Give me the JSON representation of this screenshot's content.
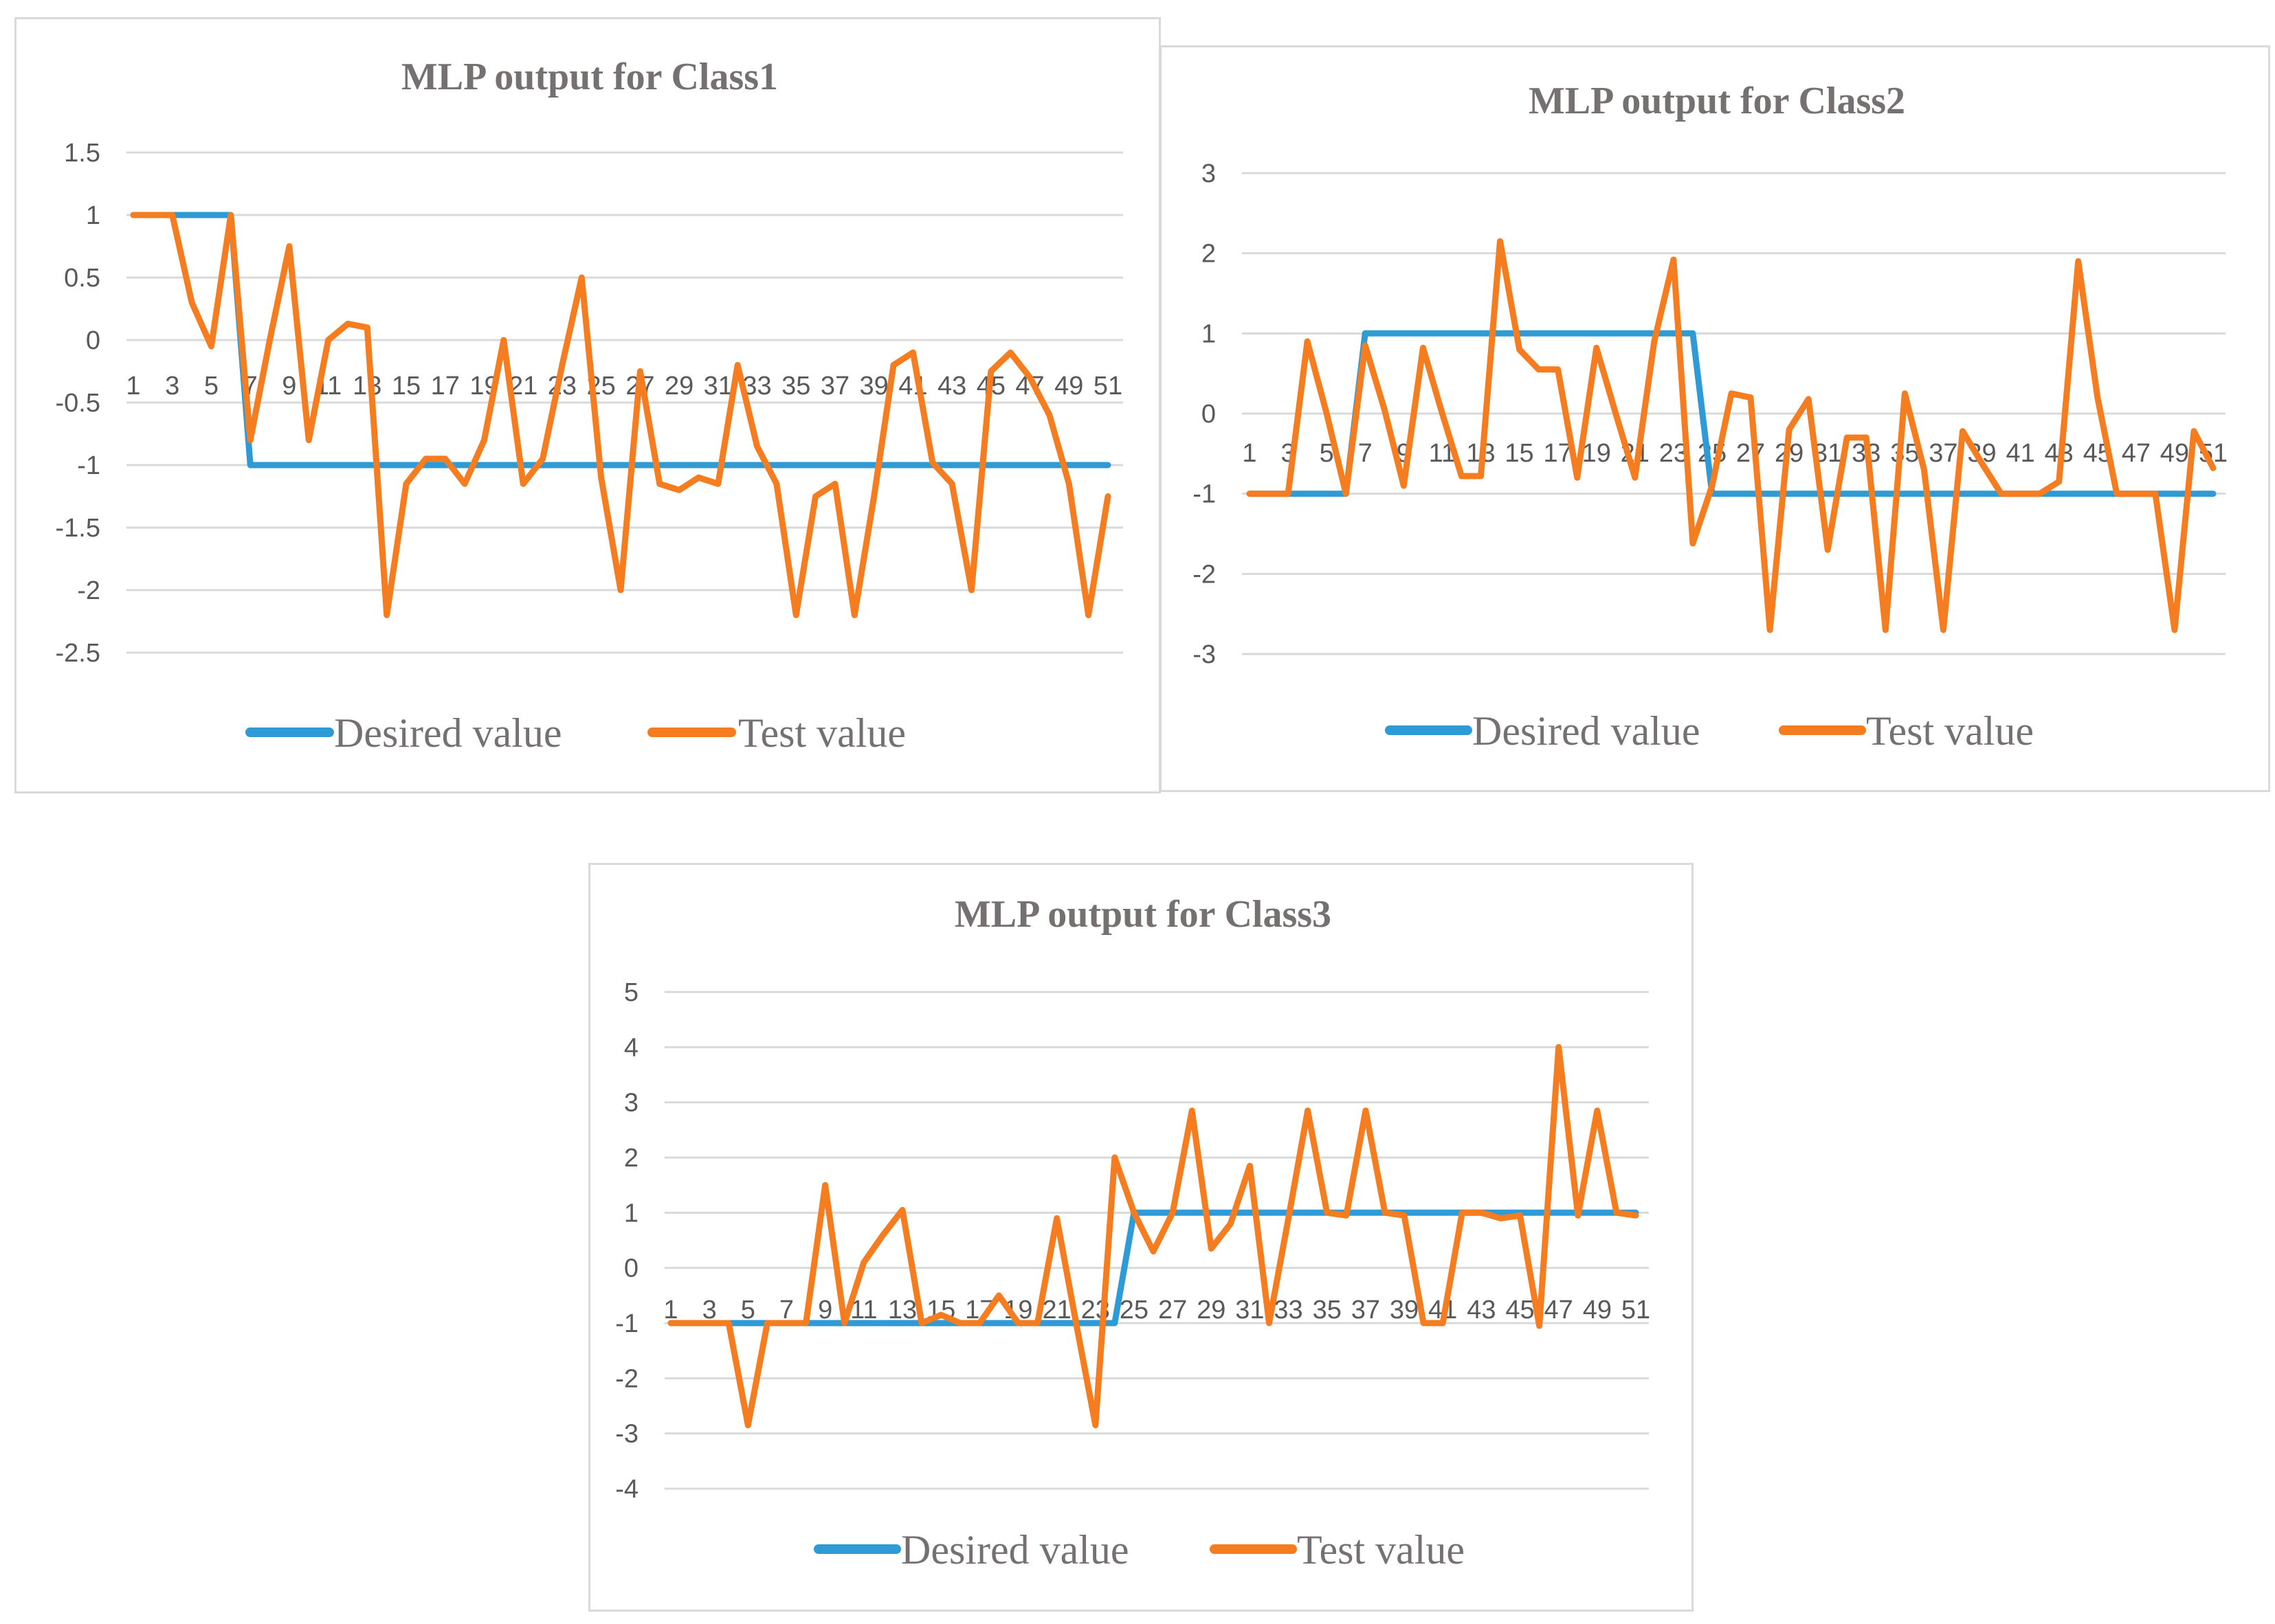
{
  "chart_data": [
    {
      "type": "line",
      "title": "MLP output for Class1",
      "xlabel": "",
      "ylabel": "",
      "x": [
        1,
        2,
        3,
        4,
        5,
        6,
        7,
        8,
        9,
        10,
        11,
        12,
        13,
        14,
        15,
        16,
        17,
        18,
        19,
        20,
        21,
        22,
        23,
        24,
        25,
        26,
        27,
        28,
        29,
        30,
        31,
        32,
        33,
        34,
        35,
        36,
        37,
        38,
        39,
        40,
        41,
        42,
        43,
        44,
        45,
        46,
        47,
        48,
        49,
        50,
        51
      ],
      "x_tick_labels": [
        "1",
        "3",
        "5",
        "7",
        "9",
        "11",
        "13",
        "15",
        "17",
        "19",
        "21",
        "23",
        "25",
        "27",
        "29",
        "31",
        "33",
        "35",
        "37",
        "39",
        "41",
        "43",
        "45",
        "47",
        "49",
        "51"
      ],
      "ylim": [
        -2.5,
        1.5
      ],
      "y_ticks": [
        1.5,
        1,
        0.5,
        0,
        -0.5,
        -1,
        -1.5,
        -2,
        -2.5
      ],
      "y_tick_labels": [
        "1.5",
        "1",
        "0.5",
        "0",
        "-0.5",
        "-1",
        "-1.5",
        "-2",
        "-2.5"
      ],
      "legend": "bottom",
      "series": [
        {
          "name": "Desired value",
          "color": "#2e9bd6",
          "values": [
            1,
            1,
            1,
            1,
            1,
            1,
            -1,
            -1,
            -1,
            -1,
            -1,
            -1,
            -1,
            -1,
            -1,
            -1,
            -1,
            -1,
            -1,
            -1,
            -1,
            -1,
            -1,
            -1,
            -1,
            -1,
            -1,
            -1,
            -1,
            -1,
            -1,
            -1,
            -1,
            -1,
            -1,
            -1,
            -1,
            -1,
            -1,
            -1,
            -1,
            -1,
            -1,
            -1,
            -1,
            -1,
            -1,
            -1,
            -1,
            -1,
            -1
          ]
        },
        {
          "name": "Test value",
          "color": "#f57c1f",
          "values": [
            1,
            1,
            1,
            0.3,
            -0.05,
            1,
            -0.8,
            0,
            0.75,
            -0.8,
            0,
            0.13,
            0.1,
            -2.2,
            -1.15,
            -0.95,
            -0.95,
            -1.15,
            -0.8,
            0,
            -1.15,
            -0.95,
            -0.2,
            0.5,
            -1.1,
            -2,
            -0.25,
            -1.15,
            -1.2,
            -1.1,
            -1.15,
            -0.2,
            -0.85,
            -1.15,
            -2.2,
            -1.25,
            -1.15,
            -2.2,
            -1.25,
            -0.2,
            -0.1,
            -0.98,
            -1.15,
            -2,
            -0.25,
            -0.1,
            -0.3,
            -0.6,
            -1.15,
            -2.2,
            -1.25
          ]
        }
      ]
    },
    {
      "type": "line",
      "title": "MLP output for Class2",
      "xlabel": "",
      "ylabel": "",
      "x": [
        1,
        2,
        3,
        4,
        5,
        6,
        7,
        8,
        9,
        10,
        11,
        12,
        13,
        14,
        15,
        16,
        17,
        18,
        19,
        20,
        21,
        22,
        23,
        24,
        25,
        26,
        27,
        28,
        29,
        30,
        31,
        32,
        33,
        34,
        35,
        36,
        37,
        38,
        39,
        40,
        41,
        42,
        43,
        44,
        45,
        46,
        47,
        48,
        49,
        50,
        51
      ],
      "x_tick_labels": [
        "1",
        "3",
        "5",
        "7",
        "9",
        "11",
        "13",
        "15",
        "17",
        "19",
        "21",
        "23",
        "25",
        "27",
        "29",
        "31",
        "33",
        "35",
        "37",
        "39",
        "41",
        "43",
        "45",
        "47",
        "49",
        "51"
      ],
      "ylim": [
        -3,
        3
      ],
      "y_ticks": [
        3,
        2,
        1,
        0,
        -1,
        -2,
        -3
      ],
      "y_tick_labels": [
        "3",
        "2",
        "1",
        "0",
        "-1",
        "-2",
        "-3"
      ],
      "legend": "bottom",
      "series": [
        {
          "name": "Desired value",
          "color": "#2e9bd6",
          "values": [
            -1,
            -1,
            -1,
            -1,
            -1,
            -1,
            1,
            1,
            1,
            1,
            1,
            1,
            1,
            1,
            1,
            1,
            1,
            1,
            1,
            1,
            1,
            1,
            1,
            1,
            -1,
            -1,
            -1,
            -1,
            -1,
            -1,
            -1,
            -1,
            -1,
            -1,
            -1,
            -1,
            -1,
            -1,
            -1,
            -1,
            -1,
            -1,
            -1,
            -1,
            -1,
            -1,
            -1,
            -1,
            -1,
            -1,
            -1
          ]
        },
        {
          "name": "Test value",
          "color": "#f57c1f",
          "values": [
            -1,
            -1,
            -1,
            0.9,
            0,
            -1,
            0.85,
            0.05,
            -0.9,
            0.82,
            0,
            -0.78,
            -0.78,
            2.15,
            0.8,
            0.55,
            0.55,
            -0.8,
            0.82,
            0,
            -0.8,
            0.9,
            1.92,
            -1.62,
            -0.9,
            0.25,
            0.2,
            -2.7,
            -0.2,
            0.18,
            -1.7,
            -0.3,
            -0.3,
            -2.7,
            0.25,
            -0.7,
            -2.7,
            -0.22,
            -0.62,
            -1,
            -1,
            -1,
            -0.85,
            1.9,
            0.2,
            -1,
            -1,
            -1,
            -2.7,
            -0.22,
            -0.68
          ]
        }
      ]
    },
    {
      "type": "line",
      "title": "MLP output for Class3",
      "xlabel": "",
      "ylabel": "",
      "x": [
        1,
        2,
        3,
        4,
        5,
        6,
        7,
        8,
        9,
        10,
        11,
        12,
        13,
        14,
        15,
        16,
        17,
        18,
        19,
        20,
        21,
        22,
        23,
        24,
        25,
        26,
        27,
        28,
        29,
        30,
        31,
        32,
        33,
        34,
        35,
        36,
        37,
        38,
        39,
        40,
        41,
        42,
        43,
        44,
        45,
        46,
        47,
        48,
        49,
        50,
        51
      ],
      "x_tick_labels": [
        "1",
        "3",
        "5",
        "7",
        "9",
        "11",
        "13",
        "15",
        "17",
        "19",
        "21",
        "23",
        "25",
        "27",
        "29",
        "31",
        "33",
        "35",
        "37",
        "39",
        "41",
        "43",
        "45",
        "47",
        "49",
        "51"
      ],
      "ylim": [
        -4,
        5
      ],
      "y_ticks": [
        5,
        4,
        3,
        2,
        1,
        0,
        -1,
        -2,
        -3,
        -4
      ],
      "y_tick_labels": [
        "5",
        "4",
        "3",
        "2",
        "1",
        "0",
        "-1",
        "-2",
        "-3",
        "-4"
      ],
      "legend": "bottom",
      "series": [
        {
          "name": "Desired value",
          "color": "#2e9bd6",
          "values": [
            -1,
            -1,
            -1,
            -1,
            -1,
            -1,
            -1,
            -1,
            -1,
            -1,
            -1,
            -1,
            -1,
            -1,
            -1,
            -1,
            -1,
            -1,
            -1,
            -1,
            -1,
            -1,
            -1,
            -1,
            1,
            1,
            1,
            1,
            1,
            1,
            1,
            1,
            1,
            1,
            1,
            1,
            1,
            1,
            1,
            1,
            1,
            1,
            1,
            1,
            1,
            1,
            1,
            1,
            1,
            1,
            1
          ]
        },
        {
          "name": "Test value",
          "color": "#f57c1f",
          "values": [
            -1,
            -1,
            -1,
            -1,
            -2.85,
            -1,
            -1,
            -1,
            1.5,
            -1,
            0.1,
            0.6,
            1.05,
            -1,
            -0.85,
            -1,
            -1,
            -0.5,
            -1,
            -1,
            0.9,
            -1,
            -2.85,
            2,
            1,
            0.3,
            1,
            2.85,
            0.35,
            0.8,
            1.85,
            -1,
            0.9,
            2.85,
            1,
            0.95,
            2.85,
            1,
            0.95,
            -1,
            -1,
            1,
            1,
            0.9,
            0.95,
            -1.05,
            4,
            0.95,
            2.85,
            1,
            0.95
          ]
        }
      ]
    }
  ]
}
